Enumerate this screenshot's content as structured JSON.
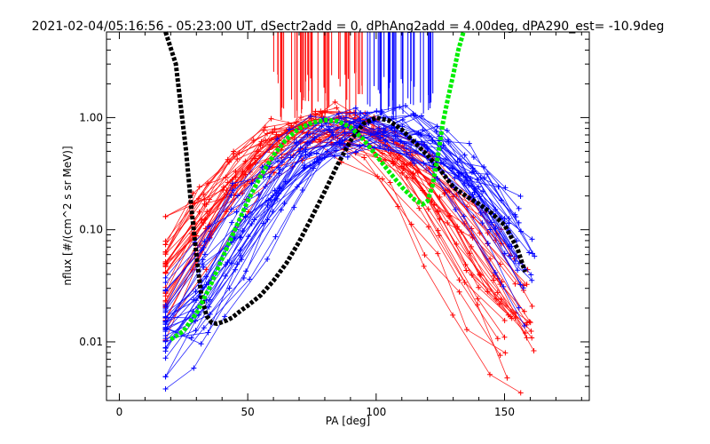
{
  "chart_data": {
    "type": "line",
    "title": "2021-02-04/05:16:56 - 05:23:00 UT, dSectr2add = 0, dPhAng2add = 4.00deg, dPA290_est= -10.9deg",
    "xlabel": "PA [deg]",
    "ylabel": "nflux [#/(cm^2 s sr MeV)]",
    "xlim": [
      -5,
      183
    ],
    "ylim": [
      0.003,
      5.8
    ],
    "yscale": "log",
    "x_ticks": [
      0,
      50,
      100,
      150
    ],
    "x_tick_labels": [
      "0",
      "50",
      "100",
      "150"
    ],
    "y_ticks": [
      0.01,
      0.1,
      1.0
    ],
    "y_tick_labels": [
      "0.01",
      "0.10",
      "1.00"
    ],
    "grid": false,
    "legend": "none",
    "series": [
      {
        "color": "#000000",
        "style": "thick-dashed",
        "x": [
          18,
          22,
          26,
          28,
          30,
          32,
          34,
          36,
          38,
          40,
          42,
          44,
          46,
          48,
          50,
          55,
          60,
          65,
          70,
          75,
          80,
          85,
          90,
          95,
          100,
          105,
          110,
          115,
          120,
          125,
          130,
          135,
          140,
          145,
          150,
          155,
          158
        ],
        "y": [
          5.8,
          3.0,
          0.5,
          0.16,
          0.06,
          0.025,
          0.017,
          0.0148,
          0.0145,
          0.015,
          0.0156,
          0.0165,
          0.018,
          0.0195,
          0.021,
          0.026,
          0.035,
          0.05,
          0.078,
          0.13,
          0.22,
          0.38,
          0.62,
          0.88,
          1.0,
          0.94,
          0.78,
          0.6,
          0.46,
          0.34,
          0.24,
          0.2,
          0.17,
          0.14,
          0.11,
          0.068,
          0.042
        ]
      },
      {
        "color": "#00ee00",
        "style": "thick-dashed",
        "x": [
          20,
          25,
          30,
          35,
          40,
          45,
          50,
          55,
          60,
          65,
          70,
          75,
          80,
          85,
          90,
          95,
          100,
          105,
          110,
          115,
          118,
          120,
          122,
          124,
          126,
          128,
          130,
          132,
          134
        ],
        "y": [
          0.0105,
          0.0125,
          0.018,
          0.03,
          0.055,
          0.1,
          0.18,
          0.3,
          0.46,
          0.64,
          0.8,
          0.9,
          0.95,
          0.93,
          0.82,
          0.64,
          0.46,
          0.33,
          0.24,
          0.185,
          0.168,
          0.18,
          0.25,
          0.45,
          0.9,
          1.5,
          2.4,
          4.0,
          5.8
        ]
      }
    ]
  }
}
